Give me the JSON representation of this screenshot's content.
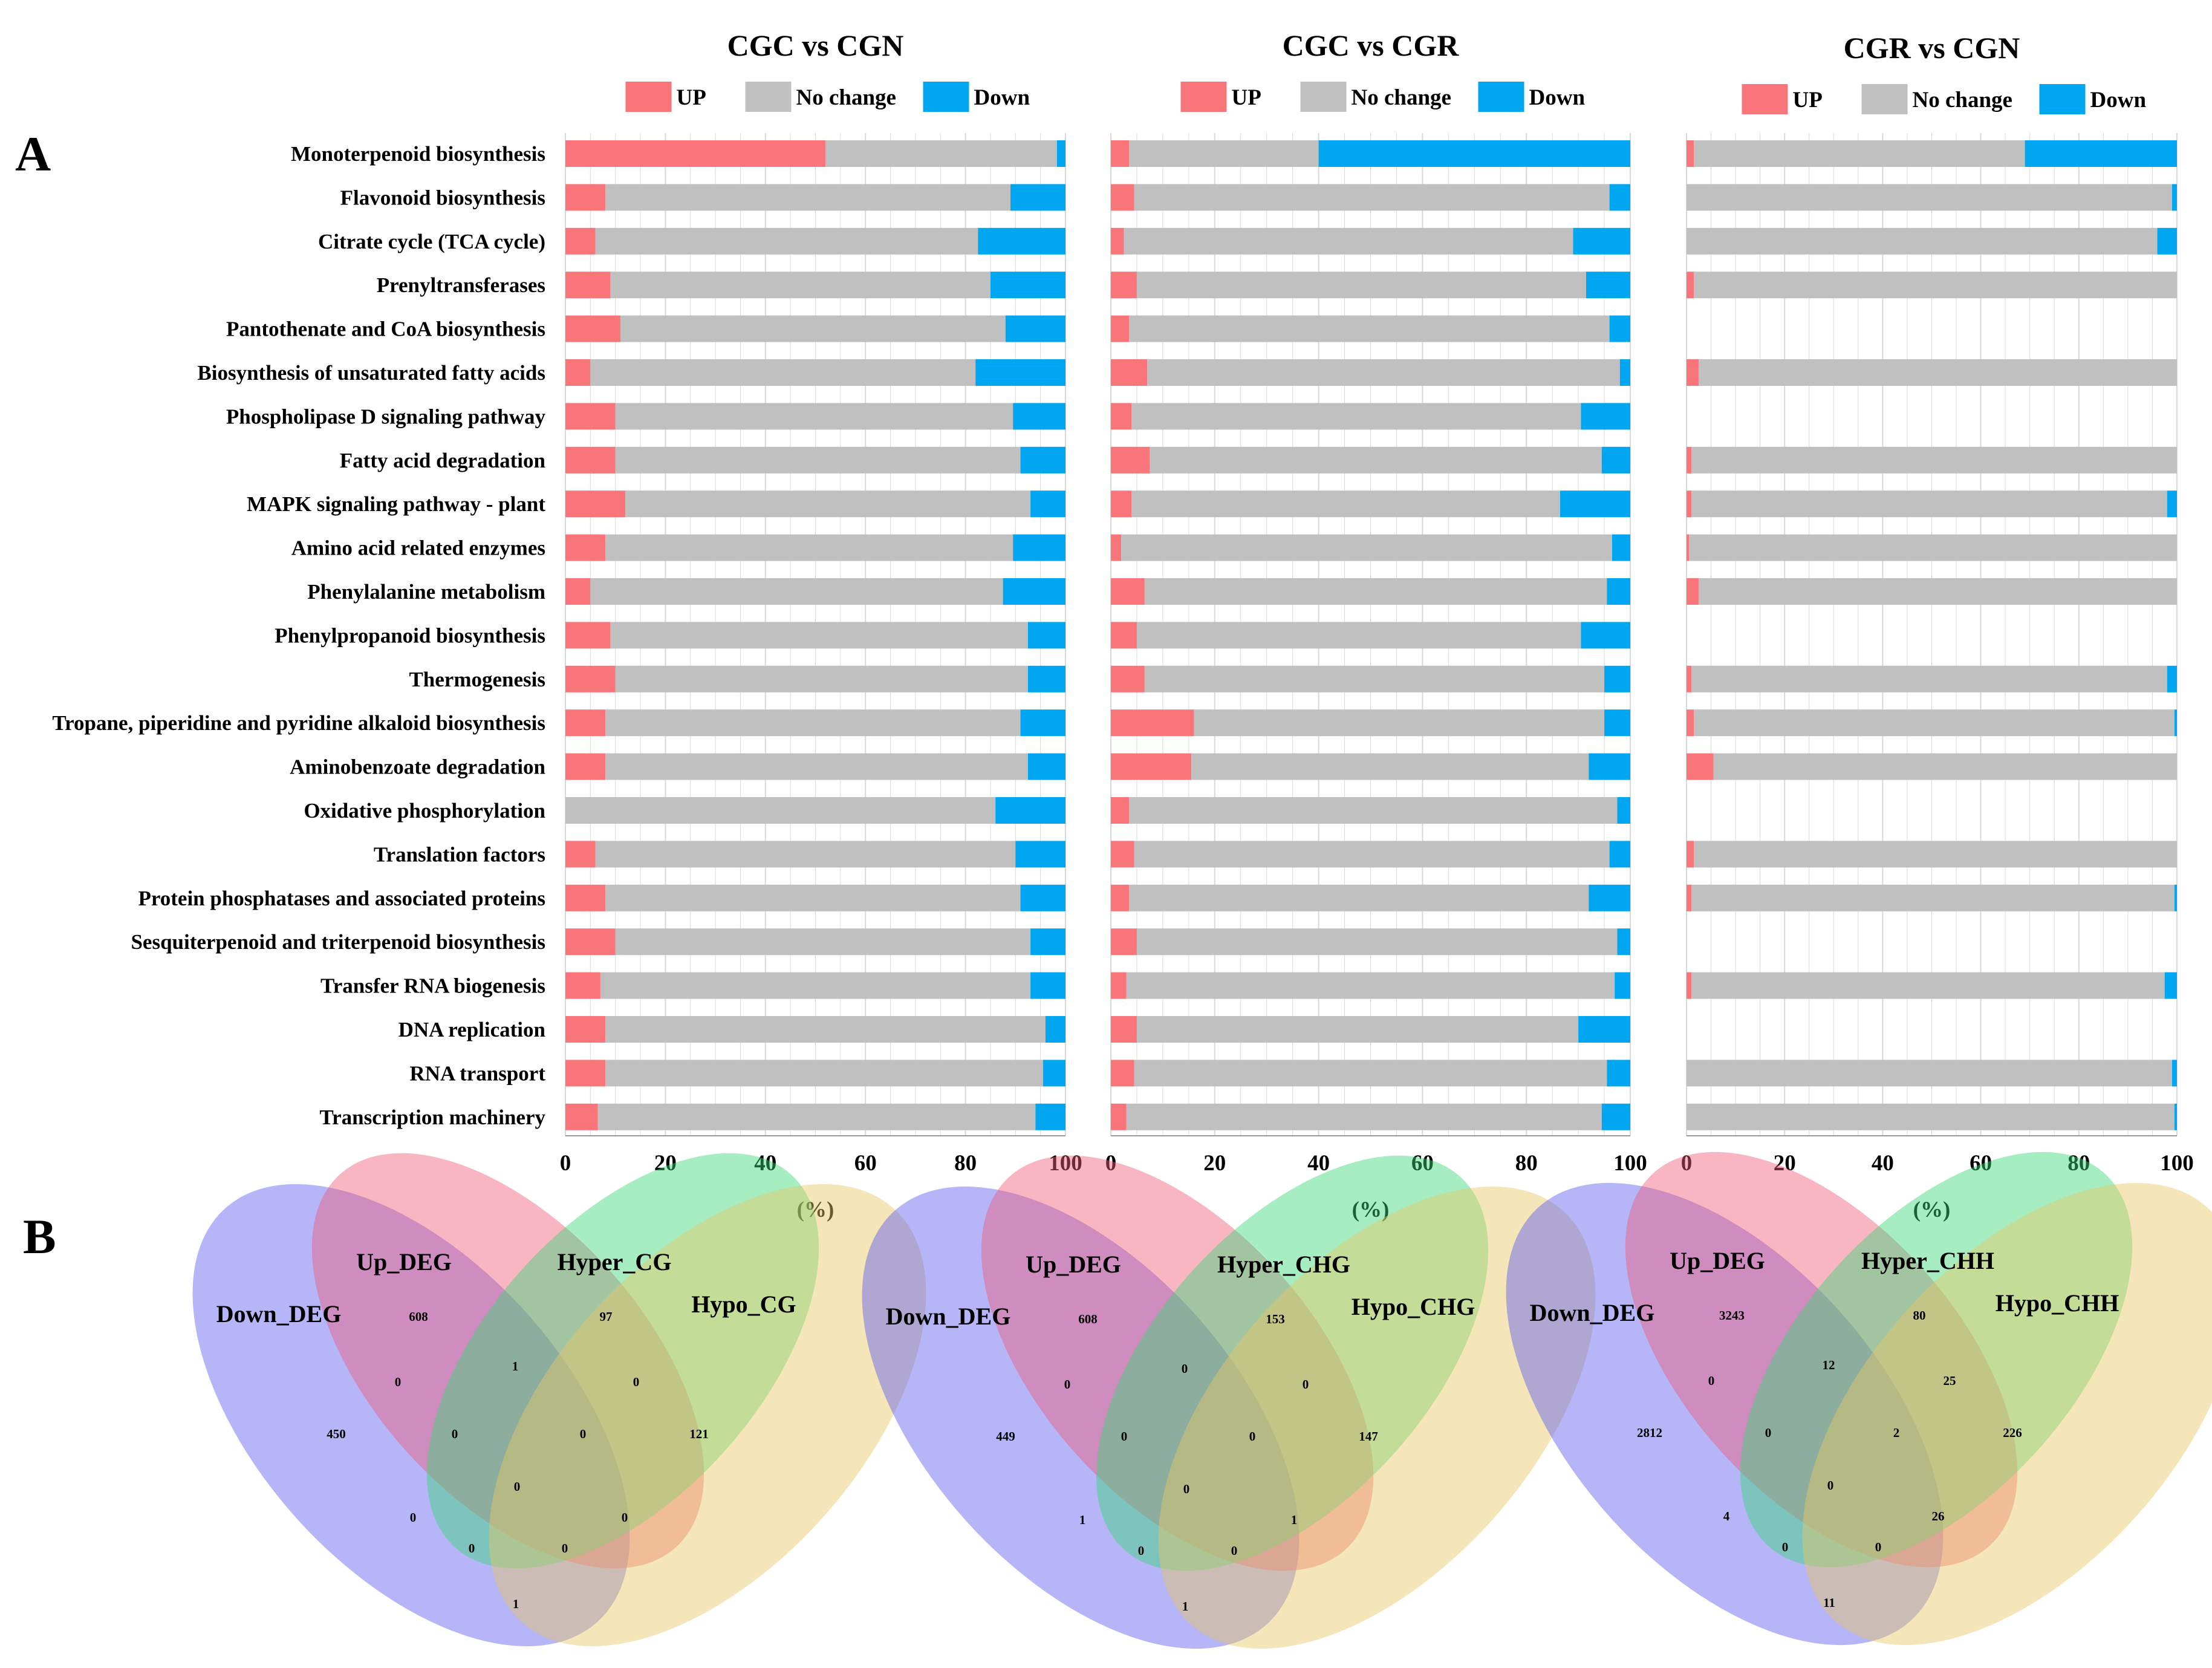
{
  "panel_labels": {
    "a": "A",
    "b": "B"
  },
  "colors": {
    "up": "#f8767a",
    "nochange": "#c0c0c0",
    "down": "#00a6f0",
    "grid": "#d8d8d8"
  },
  "chart_data": [
    {
      "type": "bar",
      "orientation": "horizontal",
      "stacked": true,
      "title": "CGC vs CGN",
      "xlabel": "(%)",
      "xlim": [
        0,
        100
      ],
      "xticks": [
        0,
        20,
        40,
        60,
        80,
        100
      ],
      "legend": [
        "UP",
        "No change",
        "Down"
      ],
      "categories": [
        "Monoterpenoid biosynthesis",
        "Flavonoid biosynthesis",
        "Citrate cycle (TCA cycle)",
        "Prenyltransferases",
        "Pantothenate and CoA biosynthesis",
        "Biosynthesis of unsaturated fatty acids",
        "Phospholipase D signaling pathway",
        "Fatty acid degradation",
        "MAPK signaling pathway - plant",
        "Amino acid related enzymes",
        "Phenylalanine metabolism",
        "Phenylpropanoid biosynthesis",
        "Thermogenesis",
        "Tropane, piperidine and pyridine alkaloid biosynthesis",
        "Aminobenzoate degradation",
        "Oxidative phosphorylation",
        "Translation factors",
        "Protein phosphatases and associated proteins",
        "Sesquiterpenoid and triterpenoid biosynthesis",
        "Transfer RNA biogenesis",
        "DNA replication",
        "RNA transport",
        "Transcription machinery"
      ],
      "series": [
        {
          "name": "UP",
          "values": [
            52,
            8,
            6,
            9,
            11,
            5,
            10,
            10,
            12,
            8,
            5,
            9,
            10,
            8,
            8,
            0,
            6,
            8,
            10,
            7,
            8,
            8,
            6.5
          ]
        },
        {
          "name": "No change",
          "values": [
            46.3,
            81,
            76.5,
            76,
            77,
            77,
            79.5,
            81,
            81,
            81.5,
            82.5,
            83.5,
            82.5,
            83,
            84.5,
            86,
            84,
            83,
            83,
            86,
            88,
            87.5,
            87.5
          ]
        },
        {
          "name": "Down",
          "values": [
            1.7,
            11,
            17.5,
            15,
            12,
            18,
            10.5,
            9,
            7,
            10.5,
            12.5,
            7.5,
            7.5,
            9,
            7.5,
            14,
            10,
            9,
            7,
            7,
            4,
            4.5,
            6
          ]
        }
      ]
    },
    {
      "type": "bar",
      "orientation": "horizontal",
      "stacked": true,
      "title": "CGC vs CGR",
      "xlabel": "(%)",
      "xlim": [
        0,
        100
      ],
      "xticks": [
        0,
        20,
        40,
        60,
        80,
        100
      ],
      "legend": [
        "UP",
        "No change",
        "Down"
      ],
      "series": [
        {
          "name": "UP",
          "values": [
            3.5,
            4.5,
            2.5,
            5,
            3.5,
            7,
            4,
            7.5,
            4,
            2,
            6.5,
            5,
            6.5,
            16,
            15.5,
            3.5,
            4.5,
            3.5,
            5,
            3,
            5,
            4.5,
            3
          ]
        },
        {
          "name": "No change",
          "values": [
            36.5,
            91.5,
            86.5,
            86.5,
            92.5,
            91,
            86.5,
            87,
            82.5,
            94.5,
            89,
            85.5,
            88.5,
            79,
            76.5,
            94,
            91.5,
            88.5,
            92.5,
            94,
            85,
            91,
            91.5
          ]
        },
        {
          "name": "Down",
          "values": [
            60,
            4,
            11,
            8.5,
            4,
            2,
            9.5,
            5.5,
            13.5,
            3.5,
            4.5,
            9.5,
            5,
            5,
            8,
            2.5,
            4,
            8,
            2.5,
            3,
            10,
            4.5,
            5.5
          ]
        }
      ]
    },
    {
      "type": "bar",
      "orientation": "horizontal",
      "stacked": true,
      "title": "CGR vs CGN",
      "xlabel": "(%)",
      "xlim": [
        0,
        100
      ],
      "xticks": [
        0,
        20,
        40,
        60,
        80,
        100
      ],
      "legend": [
        "UP",
        "No change",
        "Down"
      ],
      "note": "null = no bar drawn for that pathway",
      "series": [
        {
          "name": "UP",
          "values": [
            1.5,
            0,
            0,
            1.5,
            null,
            2.5,
            null,
            1,
            1,
            0.5,
            2.5,
            null,
            1,
            1.5,
            5.5,
            null,
            1.5,
            1,
            null,
            1,
            null,
            null,
            0
          ]
        },
        {
          "name": "No change",
          "values": [
            67.5,
            99,
            96,
            98.5,
            null,
            97.5,
            null,
            99,
            97,
            99.5,
            97.5,
            null,
            97,
            98,
            94.5,
            null,
            98.5,
            98.5,
            null,
            96.5,
            null,
            99,
            99.5
          ]
        },
        {
          "name": "Down",
          "values": [
            31,
            1,
            4,
            0,
            null,
            0,
            null,
            0,
            2,
            0,
            0,
            null,
            2,
            0.5,
            0,
            null,
            0,
            0.5,
            null,
            2.5,
            null,
            1,
            0.5
          ]
        }
      ]
    }
  ],
  "venn": [
    {
      "sets": [
        "Down_DEG",
        "Up_DEG",
        "Hyper_CG",
        "Hypo_CG"
      ],
      "regions": {
        "down_only": "450",
        "up_only": "608",
        "hyper_only": "97",
        "hypo_only": "121",
        "down_up": "0",
        "up_hyper": "1",
        "hyper_hypo": "0",
        "down_hyper": "0",
        "up_hypo": "0",
        "down_hypo": "1",
        "down_up_hyper": "0",
        "up_hyper_hypo": "0",
        "down_hyper_hypo": "0",
        "down_up_hypo": "0",
        "all": "0"
      }
    },
    {
      "sets": [
        "Down_DEG",
        "Up_DEG",
        "Hyper_CHG",
        "Hypo_CHG"
      ],
      "regions": {
        "down_only": "449",
        "up_only": "608",
        "hyper_only": "153",
        "hypo_only": "147",
        "down_up": "0",
        "up_hyper": "0",
        "hyper_hypo": "0",
        "down_hyper": "1",
        "up_hypo": "1",
        "down_hypo": "1",
        "down_up_hyper": "0",
        "up_hyper_hypo": "0",
        "down_hyper_hypo": "0",
        "down_up_hypo": "0",
        "all": "0"
      }
    },
    {
      "sets": [
        "Down_DEG",
        "Up_DEG",
        "Hyper_CHH",
        "Hypo_CHH"
      ],
      "regions": {
        "down_only": "2812",
        "up_only": "3243",
        "hyper_only": "80",
        "hypo_only": "226",
        "down_up": "0",
        "up_hyper": "12",
        "hyper_hypo": "25",
        "down_hyper": "4",
        "up_hypo": "26",
        "down_hypo": "11",
        "down_up_hyper": "0",
        "up_hyper_hypo": "2",
        "down_hyper_hypo": "0",
        "down_up_hypo": "0",
        "all": "0"
      }
    }
  ]
}
